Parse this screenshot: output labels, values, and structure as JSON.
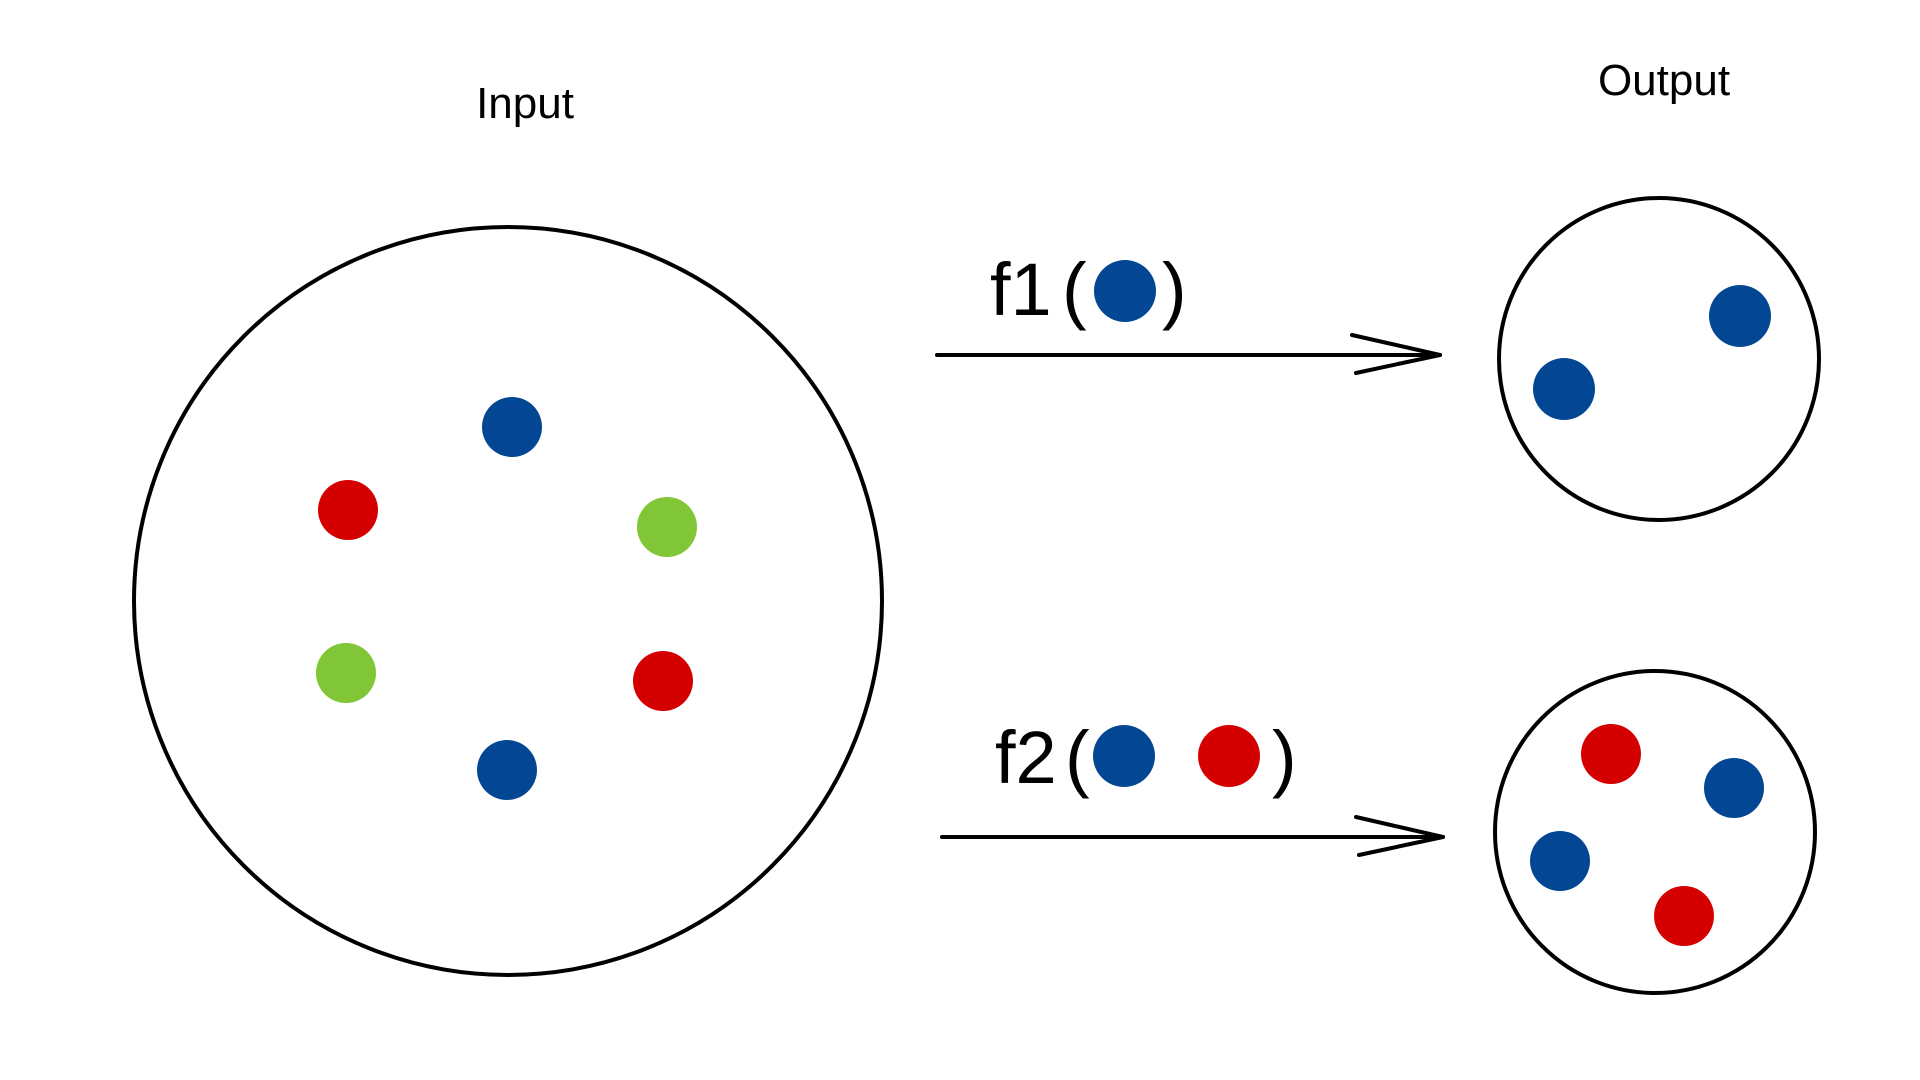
{
  "diagram": {
    "input_label": "Input",
    "output_label": "Output",
    "functions": [
      {
        "id": "f1",
        "name": "f1",
        "open_paren": "(",
        "close_paren": ")",
        "argument_dots": [
          "blue"
        ],
        "output_dots": [
          "blue",
          "blue"
        ]
      },
      {
        "id": "f2",
        "name": "f2",
        "open_paren": "(",
        "close_paren": ")",
        "argument_dots": [
          "blue",
          "red"
        ],
        "output_dots": [
          "red",
          "blue",
          "blue",
          "red"
        ]
      }
    ],
    "input_dots": [
      "red",
      "blue",
      "green",
      "green",
      "red",
      "blue"
    ]
  },
  "colors": {
    "blue": "#034694",
    "red": "#d40000",
    "green": "#80c636",
    "stroke": "#000000",
    "background": "#ffffff"
  }
}
